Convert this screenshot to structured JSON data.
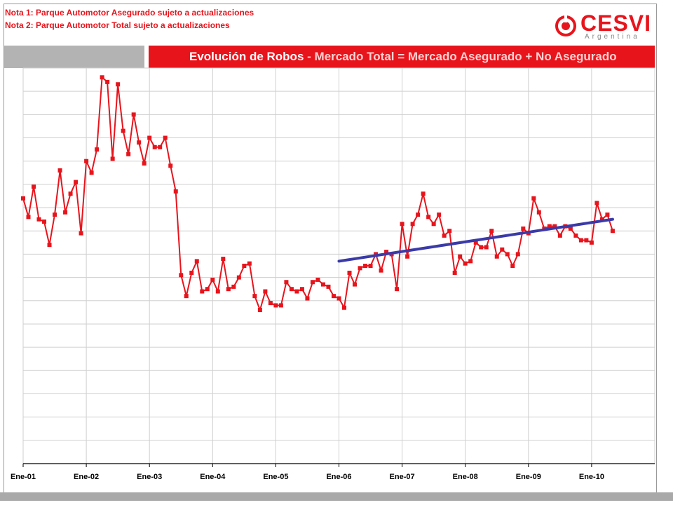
{
  "notes": {
    "note1": "Nota 1: Parque Automotor Asegurado sujeto a actualizaciones",
    "note2": "Nota 2: Parque Automotor Total sujeto a actualizaciones"
  },
  "logo": {
    "word": "CESVI",
    "sub": "Argentina"
  },
  "banner": {
    "title_main": "Evolución de Robos",
    "title_sep": " - ",
    "title_sub": "Mercado Total = Mercado Asegurado + No Asegurado"
  },
  "colors": {
    "series": "#e8141c",
    "trend": "#3a3aa8",
    "grid": "#cfcfcf"
  },
  "chart_data": {
    "type": "line",
    "x_tick_labels": [
      "Ene-01",
      "Ene-02",
      "Ene-03",
      "Ene-04",
      "Ene-05",
      "Ene-06",
      "Ene-07",
      "Ene-08",
      "Ene-09",
      "Ene-10"
    ],
    "ylim": [
      0,
      17
    ],
    "grid": true,
    "y_tick_labels_visible": false,
    "series": [
      {
        "kind": "data",
        "x_start_month": 0,
        "values": [
          11.4,
          10.6,
          11.9,
          10.5,
          10.4,
          9.4,
          10.7,
          12.6,
          10.8,
          11.6,
          12.1,
          9.9,
          13.0,
          12.5,
          13.5,
          16.6,
          16.4,
          13.1,
          16.3,
          14.3,
          13.3,
          15.0,
          13.8,
          12.9,
          14.0,
          13.6,
          13.6,
          14.0,
          12.8,
          11.7,
          8.1,
          7.2,
          8.2,
          8.7,
          7.4,
          7.5,
          7.9,
          7.4,
          8.8,
          7.5,
          7.6,
          8.0,
          8.5,
          8.6,
          7.2,
          6.6,
          7.4,
          6.9,
          6.8,
          6.8,
          7.8,
          7.5,
          7.4,
          7.5,
          7.1,
          7.8,
          7.9,
          7.7,
          7.6,
          7.2,
          7.1,
          6.7,
          8.2,
          7.7,
          8.4,
          8.5,
          8.5,
          9.0,
          8.3,
          9.1,
          9.0,
          7.5,
          10.3,
          8.9,
          10.3,
          10.7,
          11.6,
          10.6,
          10.3,
          10.7,
          9.8,
          10.0,
          8.2,
          8.9,
          8.6,
          8.7,
          9.5,
          9.3,
          9.3,
          10.0,
          8.9,
          9.2,
          9.0,
          8.5,
          9.0,
          10.1,
          9.9,
          11.4,
          10.8,
          10.1,
          10.2,
          10.2,
          9.8,
          10.2,
          10.1,
          9.8,
          9.6,
          9.6,
          9.5,
          11.2,
          10.5,
          10.7,
          10.0
        ]
      },
      {
        "kind": "trend",
        "x_start_month": 60,
        "x_end_month": 112,
        "start_value": 8.7,
        "end_value": 10.5
      }
    ]
  }
}
